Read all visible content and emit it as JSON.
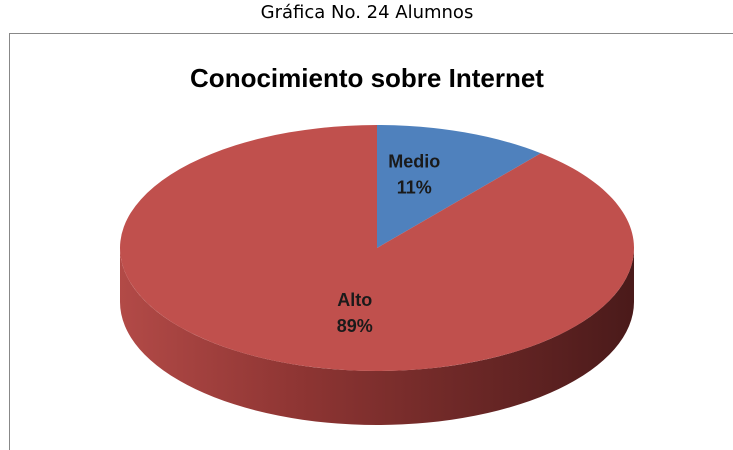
{
  "chart_data": {
    "type": "pie",
    "caption": "Gráfica No. 24 Alumnos",
    "title": "Conocimiento sobre Internet",
    "categories": [
      "Medio",
      "Alto"
    ],
    "values": [
      11,
      89
    ],
    "value_labels": [
      "11%",
      "89%"
    ],
    "colors": [
      "#4f81bd",
      "#c0504d"
    ],
    "style": "3d"
  }
}
